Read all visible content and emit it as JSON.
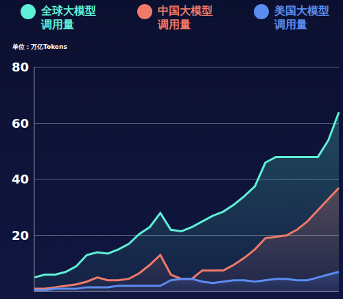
{
  "chart_data": {
    "type": "area",
    "ylabel": "单位：万亿Tokens",
    "categories": [
      null,
      null,
      null,
      null,
      null,
      null,
      null,
      null,
      null,
      null,
      null,
      null,
      null,
      null,
      null,
      null,
      null,
      null,
      null,
      null,
      null,
      null,
      null,
      null,
      null,
      null,
      null,
      null,
      null,
      null
    ],
    "series": [
      {
        "name": "全球大模型调用量",
        "color": "#5ef0d6",
        "values": [
          5,
          6,
          6,
          7,
          9,
          13,
          14,
          13.5,
          15,
          17,
          20.5,
          23,
          28,
          22,
          21.5,
          23,
          25,
          27,
          28.5,
          31,
          34,
          37.5,
          46,
          48,
          48,
          48,
          48,
          48,
          54,
          64
        ]
      },
      {
        "name": "中国大模型调用量",
        "color": "#f07a6a",
        "values": [
          1,
          1,
          1.5,
          2,
          2.5,
          3.5,
          5,
          4,
          4,
          4.5,
          6.5,
          9.5,
          13,
          6,
          4.5,
          4.5,
          7.5,
          7.5,
          7.5,
          9.5,
          12,
          15,
          19,
          19.5,
          20,
          22,
          25,
          29,
          33,
          37
        ]
      },
      {
        "name": "美国大模型调用量",
        "color": "#5b8cf0",
        "values": [
          0.5,
          0.5,
          1,
          1,
          1,
          1.5,
          1.5,
          1.5,
          2,
          2,
          2,
          2,
          2,
          4,
          4.5,
          4.5,
          3.5,
          3,
          3.5,
          4,
          4,
          3.5,
          4,
          4.5,
          4.5,
          4,
          4,
          5,
          6,
          7
        ]
      }
    ],
    "ylim": [
      0,
      80
    ],
    "yticks": [
      20,
      40,
      60,
      80
    ],
    "grid": true,
    "legend": "top",
    "tick_labels": "y"
  }
}
